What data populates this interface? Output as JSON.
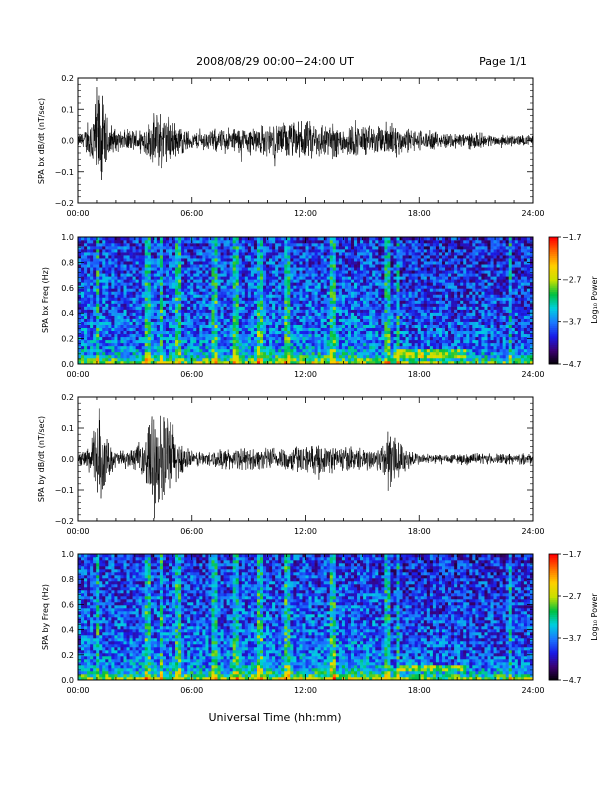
{
  "page": {
    "title": "2008/08/29  00:00−24:00 UT",
    "page_label": "Page 1/1",
    "xlabel": "Universal Time (hh:mm)"
  },
  "colors": {
    "trace": "#000000",
    "background": "#ffffff",
    "colormap": [
      "#000000",
      "#3b0070",
      "#1a1ae6",
      "#1a78ff",
      "#00d0e0",
      "#00c040",
      "#c8e000",
      "#ffd000",
      "#ff7000",
      "#ff0000"
    ]
  },
  "chart_data": [
    {
      "id": "bx-dbdt",
      "type": "line",
      "ylabel": "SPA bx dB/dt (nT/sec)",
      "x_range_hours": [
        0,
        24
      ],
      "x_ticks": [
        "00:00",
        "06:00",
        "12:00",
        "18:00",
        "24:00"
      ],
      "ylim": [
        -0.2,
        0.2
      ],
      "y_ticks": [
        "0.2",
        "0.1",
        "0.0",
        "−0.1",
        "−0.2"
      ],
      "envelope": {
        "hours": [
          0,
          0.5,
          1.0,
          1.2,
          1.5,
          2.0,
          3.0,
          3.8,
          4.2,
          4.8,
          5.3,
          6.0,
          7.0,
          8.0,
          9.0,
          10.0,
          11.0,
          12.0,
          13.0,
          14.0,
          15.0,
          16.0,
          16.5,
          17.0,
          18.0,
          19.0,
          20.0,
          21.0,
          22.0,
          23.0,
          24.0
        ],
        "amplitude": [
          0.02,
          0.05,
          0.2,
          0.2,
          0.09,
          0.04,
          0.04,
          0.07,
          0.12,
          0.09,
          0.06,
          0.03,
          0.04,
          0.05,
          0.05,
          0.06,
          0.07,
          0.07,
          0.07,
          0.06,
          0.06,
          0.05,
          0.09,
          0.05,
          0.04,
          0.03,
          0.03,
          0.03,
          0.02,
          0.02,
          0.02
        ]
      }
    },
    {
      "id": "bx-spectrogram",
      "type": "heatmap",
      "ylabel": "SPA bx Freq (Hz)",
      "x_range_hours": [
        0,
        24
      ],
      "x_ticks": [
        "00:00",
        "06:00",
        "12:00",
        "18:00",
        "24:00"
      ],
      "ylim": [
        0,
        1.0
      ],
      "y_ticks": [
        "1.0",
        "0.8",
        "0.6",
        "0.4",
        "0.2",
        "0.0"
      ],
      "colorbar": {
        "label": "Log₁₀ Power",
        "range": [
          -4.7,
          -1.7
        ],
        "ticks": [
          "−1.7",
          "−2.7",
          "−3.7",
          "−4.7"
        ]
      },
      "bright_columns_hours": [
        1.0,
        3.7,
        4.4,
        5.3,
        7.2,
        8.3,
        9.6,
        11.0,
        13.4,
        16.3,
        16.9,
        22.8
      ],
      "low_freq_band": {
        "hours": [
          16.7,
          20.5
        ],
        "freq": 0.08
      }
    },
    {
      "id": "by-dbdt",
      "type": "line",
      "ylabel": "SPA by dB/dt (nT/sec)",
      "x_range_hours": [
        0,
        24
      ],
      "x_ticks": [
        "00:00",
        "06:00",
        "12:00",
        "18:00",
        "24:00"
      ],
      "ylim": [
        -0.2,
        0.2
      ],
      "y_ticks": [
        "0.2",
        "0.1",
        "0.0",
        "−0.1",
        "−0.2"
      ],
      "envelope": {
        "hours": [
          0,
          0.5,
          0.9,
          1.1,
          1.5,
          2.0,
          3.0,
          3.5,
          4.0,
          4.3,
          4.8,
          5.3,
          6.0,
          7.0,
          8.0,
          9.0,
          10.0,
          11.0,
          12.0,
          13.0,
          14.0,
          15.0,
          16.0,
          16.5,
          17.0,
          18.0,
          19.0,
          20.0,
          21.0,
          22.0,
          23.0,
          24.0
        ],
        "amplitude": [
          0.02,
          0.04,
          0.12,
          0.2,
          0.08,
          0.03,
          0.04,
          0.08,
          0.2,
          0.16,
          0.18,
          0.07,
          0.03,
          0.03,
          0.04,
          0.04,
          0.04,
          0.05,
          0.05,
          0.05,
          0.05,
          0.04,
          0.05,
          0.15,
          0.06,
          0.02,
          0.02,
          0.02,
          0.02,
          0.02,
          0.02,
          0.02
        ]
      }
    },
    {
      "id": "by-spectrogram",
      "type": "heatmap",
      "ylabel": "SPA by Freq (Hz)",
      "x_range_hours": [
        0,
        24
      ],
      "x_ticks": [
        "00:00",
        "06:00",
        "12:00",
        "18:00",
        "24:00"
      ],
      "ylim": [
        0,
        1.0
      ],
      "y_ticks": [
        "1.0",
        "0.8",
        "0.6",
        "0.4",
        "0.2",
        "0.0"
      ],
      "colorbar": {
        "label": "Log₁₀ Power",
        "range": [
          -4.7,
          -1.7
        ],
        "ticks": [
          "−1.7",
          "−2.7",
          "−3.7",
          "−4.7"
        ]
      },
      "bright_columns_hours": [
        1.0,
        3.7,
        4.4,
        5.3,
        7.2,
        8.3,
        9.6,
        11.0,
        13.4,
        16.3,
        16.9,
        22.8
      ],
      "low_freq_band": {
        "hours": [
          17.0,
          20.5
        ],
        "freq": 0.1
      }
    }
  ]
}
